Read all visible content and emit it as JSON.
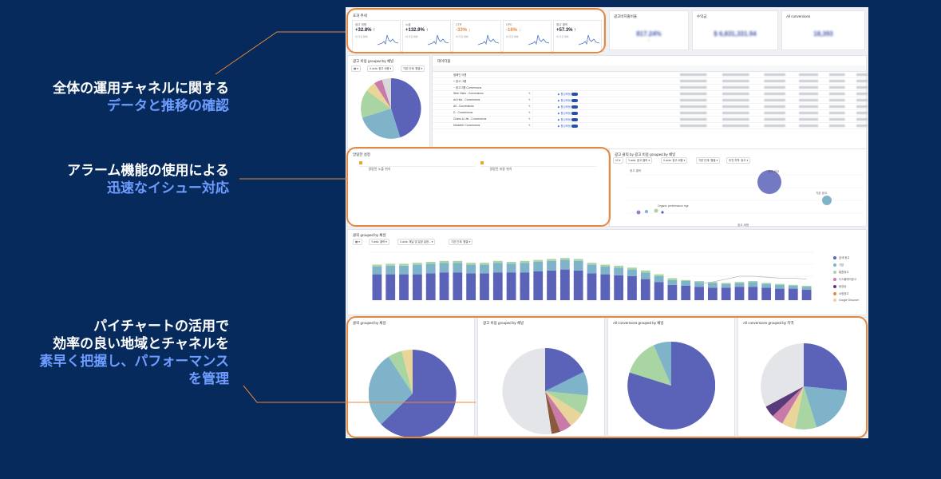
{
  "captions": {
    "c1": {
      "line1": "全体の運用チャネルに関する",
      "line2": "データと推移の確認"
    },
    "c2": {
      "line1": "アラーム機能の使用による",
      "line2": "迅速なイシュー対応"
    },
    "c3": {
      "line1": "パイチャートの活用で",
      "line2": "効率の良い地域とチャネルを",
      "line3": "素早く把握し、パフォーマンス",
      "line4": "を管理"
    }
  },
  "colors": {
    "background": "#062a5c",
    "highlight_text": "#6f9cff",
    "annotation_orange": "#e8863a",
    "series_main": "#5b63b8",
    "series_second": "#7fb3c9",
    "series_third": "#a8d5a2"
  },
  "dashboard": {
    "kpi_panel": {
      "title": "효과 추세",
      "items": [
        {
          "label": "광고 비용",
          "value": "+32.8% ↑",
          "sub": "이 기간 대비"
        },
        {
          "label": "노출",
          "value": "+132.9% ↑",
          "sub": "이 기간 대비"
        },
        {
          "label": "CTR",
          "value": "-33% ↓",
          "sub": "이 기간 대비"
        },
        {
          "label": "CPC",
          "value": "-16% ↓",
          "sub": "이 기간 대비"
        },
        {
          "label": "광고 클릭",
          "value": "+57.3% ↑",
          "sub": "이 기간 대비"
        }
      ]
    },
    "stats": [
      {
        "label": "광고비지출비율",
        "value": "817.24%"
      },
      {
        "label": "수익금",
        "value": "$ 6,831,331.94"
      },
      {
        "label": "All conversions",
        "value": "18,393"
      }
    ],
    "pie_top": {
      "title": "광고 비용 grouped by 채널",
      "controls": [
        "▦ ▾",
        "X-axis: 광고 비용 ▾",
        "기본 단계: 월별 ▾"
      ]
    },
    "table": {
      "title": "데이터블",
      "rows": [
        {
          "name": "캠페인 이름",
          "status": "",
          "edit": ""
        },
        {
          "name": "+ 광고 그룹",
          "status": "",
          "edit": ""
        },
        {
          "name": "− 광고그룹 Conversions",
          "status": "",
          "edit": ""
        },
        {
          "name": "Web Visits - Conversions",
          "status": "▶ 활성화됨",
          "edit": "✎ ⋮"
        },
        {
          "name": "Ad Hub - Conversions",
          "status": "▶ 활성화됨",
          "edit": "✎ ⋮"
        },
        {
          "name": "All - Conversions",
          "status": "▶ 활성화됨",
          "edit": "✎ ⋮"
        },
        {
          "name": "D - Conversions",
          "status": "▶ 활성화됨",
          "edit": "✎ ⋮"
        },
        {
          "name": "Chairs & Life - Conversions",
          "status": "▶ 활성화됨",
          "edit": "✎ ⋮"
        },
        {
          "name": "Marketer Conversions",
          "status": "▶ 활성화됨",
          "edit": "✎ ⋮"
        }
      ]
    },
    "alarm": {
      "title": "알람한 설정",
      "items": [
        "알람된 노출 위치",
        "알람된 비용 위치"
      ]
    },
    "scatter": {
      "title": "광고 클릭 by 광고 비용 grouped by 채널",
      "controls": [
        "1Z ▾",
        "Y-axis: 광고 클릭 ▾",
        "X-axis: 광고 비용 ▾",
        "기본 단계: 월별 ▾",
        "추천 지역: 광고 ▾"
      ],
      "labels": [
        "광고 클릭",
        "검색 광고",
        "기본 광고",
        "Organic performance mgr"
      ],
      "xlabel": "광고 비용"
    },
    "bar_chart": {
      "title": "클릭 grouped by 채널",
      "controls": [
        "▦ ▾",
        "Y-axis: 클릭 ▾",
        "X-axis: 채널 및 일정 설정... ▾",
        "기본 단계: 월별 ▾"
      ],
      "legend": [
        "검색 광고",
        "기본",
        "통합광고",
        "디스플레이광고",
        "동영상",
        "쇼핑광고",
        "Google Discover"
      ]
    },
    "pies": [
      {
        "title": "클릭 grouped by 채널"
      },
      {
        "title": "광고 비용 grouped by 채널"
      },
      {
        "title": "All conversions grouped by 채널"
      },
      {
        "title": "All conversions grouped by 지역"
      }
    ]
  },
  "chart_data": {
    "type": "bar",
    "title": "클릭 grouped by 채널",
    "series": [
      {
        "name": "검색 광고",
        "values": [
          27,
          27,
          27,
          27,
          28,
          29,
          29,
          28,
          28,
          29,
          29,
          29,
          30,
          31,
          32,
          31,
          28,
          27,
          26,
          25,
          22,
          19,
          16,
          15,
          14,
          13,
          13,
          14,
          14,
          13,
          12,
          12,
          11
        ]
      },
      {
        "name": "기본",
        "values": [
          8,
          9,
          9,
          10,
          10,
          10,
          10,
          9,
          9,
          10,
          9,
          10,
          10,
          10,
          10,
          10,
          9,
          8,
          8,
          7,
          7,
          6,
          5,
          5,
          5,
          5,
          4,
          4,
          5,
          4,
          4,
          3,
          3
        ]
      },
      {
        "name": "통합광고",
        "values": [
          2,
          2,
          2,
          2,
          2,
          2,
          2,
          2,
          2,
          2,
          2,
          2,
          2,
          2,
          2,
          2,
          2,
          2,
          2,
          2,
          2,
          2,
          2,
          1,
          1,
          1,
          1,
          1,
          1,
          1,
          1,
          1,
          1
        ]
      }
    ],
    "line_series": {
      "name": "Google Discover",
      "values": [
        null,
        null,
        null,
        null,
        null,
        null,
        null,
        null,
        null,
        null,
        null,
        null,
        null,
        null,
        null,
        null,
        null,
        null,
        null,
        null,
        null,
        null,
        null,
        null,
        17,
        19,
        22,
        25,
        25,
        24,
        23,
        23,
        22
      ]
    },
    "ylim": [
      0,
      50
    ]
  }
}
